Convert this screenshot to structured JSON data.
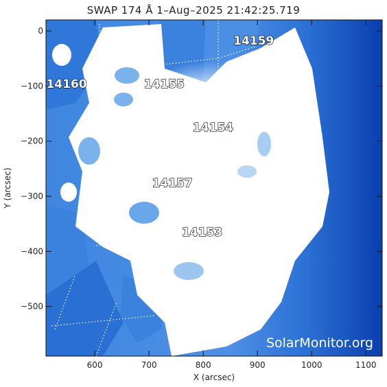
{
  "title": "SWAP 174 Å  1–Aug–2025 21:42:25.719",
  "x_axis": {
    "label": "X (arcsec)",
    "range": [
      510,
      1130
    ],
    "ticks": [
      600,
      700,
      800,
      900,
      1000,
      1100
    ]
  },
  "y_axis": {
    "label": "Y (arcsec)",
    "range": [
      -590,
      20
    ],
    "ticks": [
      0,
      -100,
      -200,
      -300,
      -400,
      -500
    ]
  },
  "regions": [
    {
      "id": "14159",
      "x": 893,
      "y": -25
    },
    {
      "id": "14160",
      "x": 548,
      "y": -103
    },
    {
      "id": "14155",
      "x": 728,
      "y": -103
    },
    {
      "id": "14154",
      "x": 818,
      "y": -182
    },
    {
      "id": "14157",
      "x": 743,
      "y": -283
    },
    {
      "id": "14153",
      "x": 798,
      "y": -372
    }
  ],
  "watermark": "SolarMonitor.org",
  "colors": {
    "image_deep": "#0b3fae",
    "image_mid": "#3f86e0",
    "image_light": "#9ec8f2",
    "saturated": "#ffffff",
    "frame": "#111111"
  }
}
